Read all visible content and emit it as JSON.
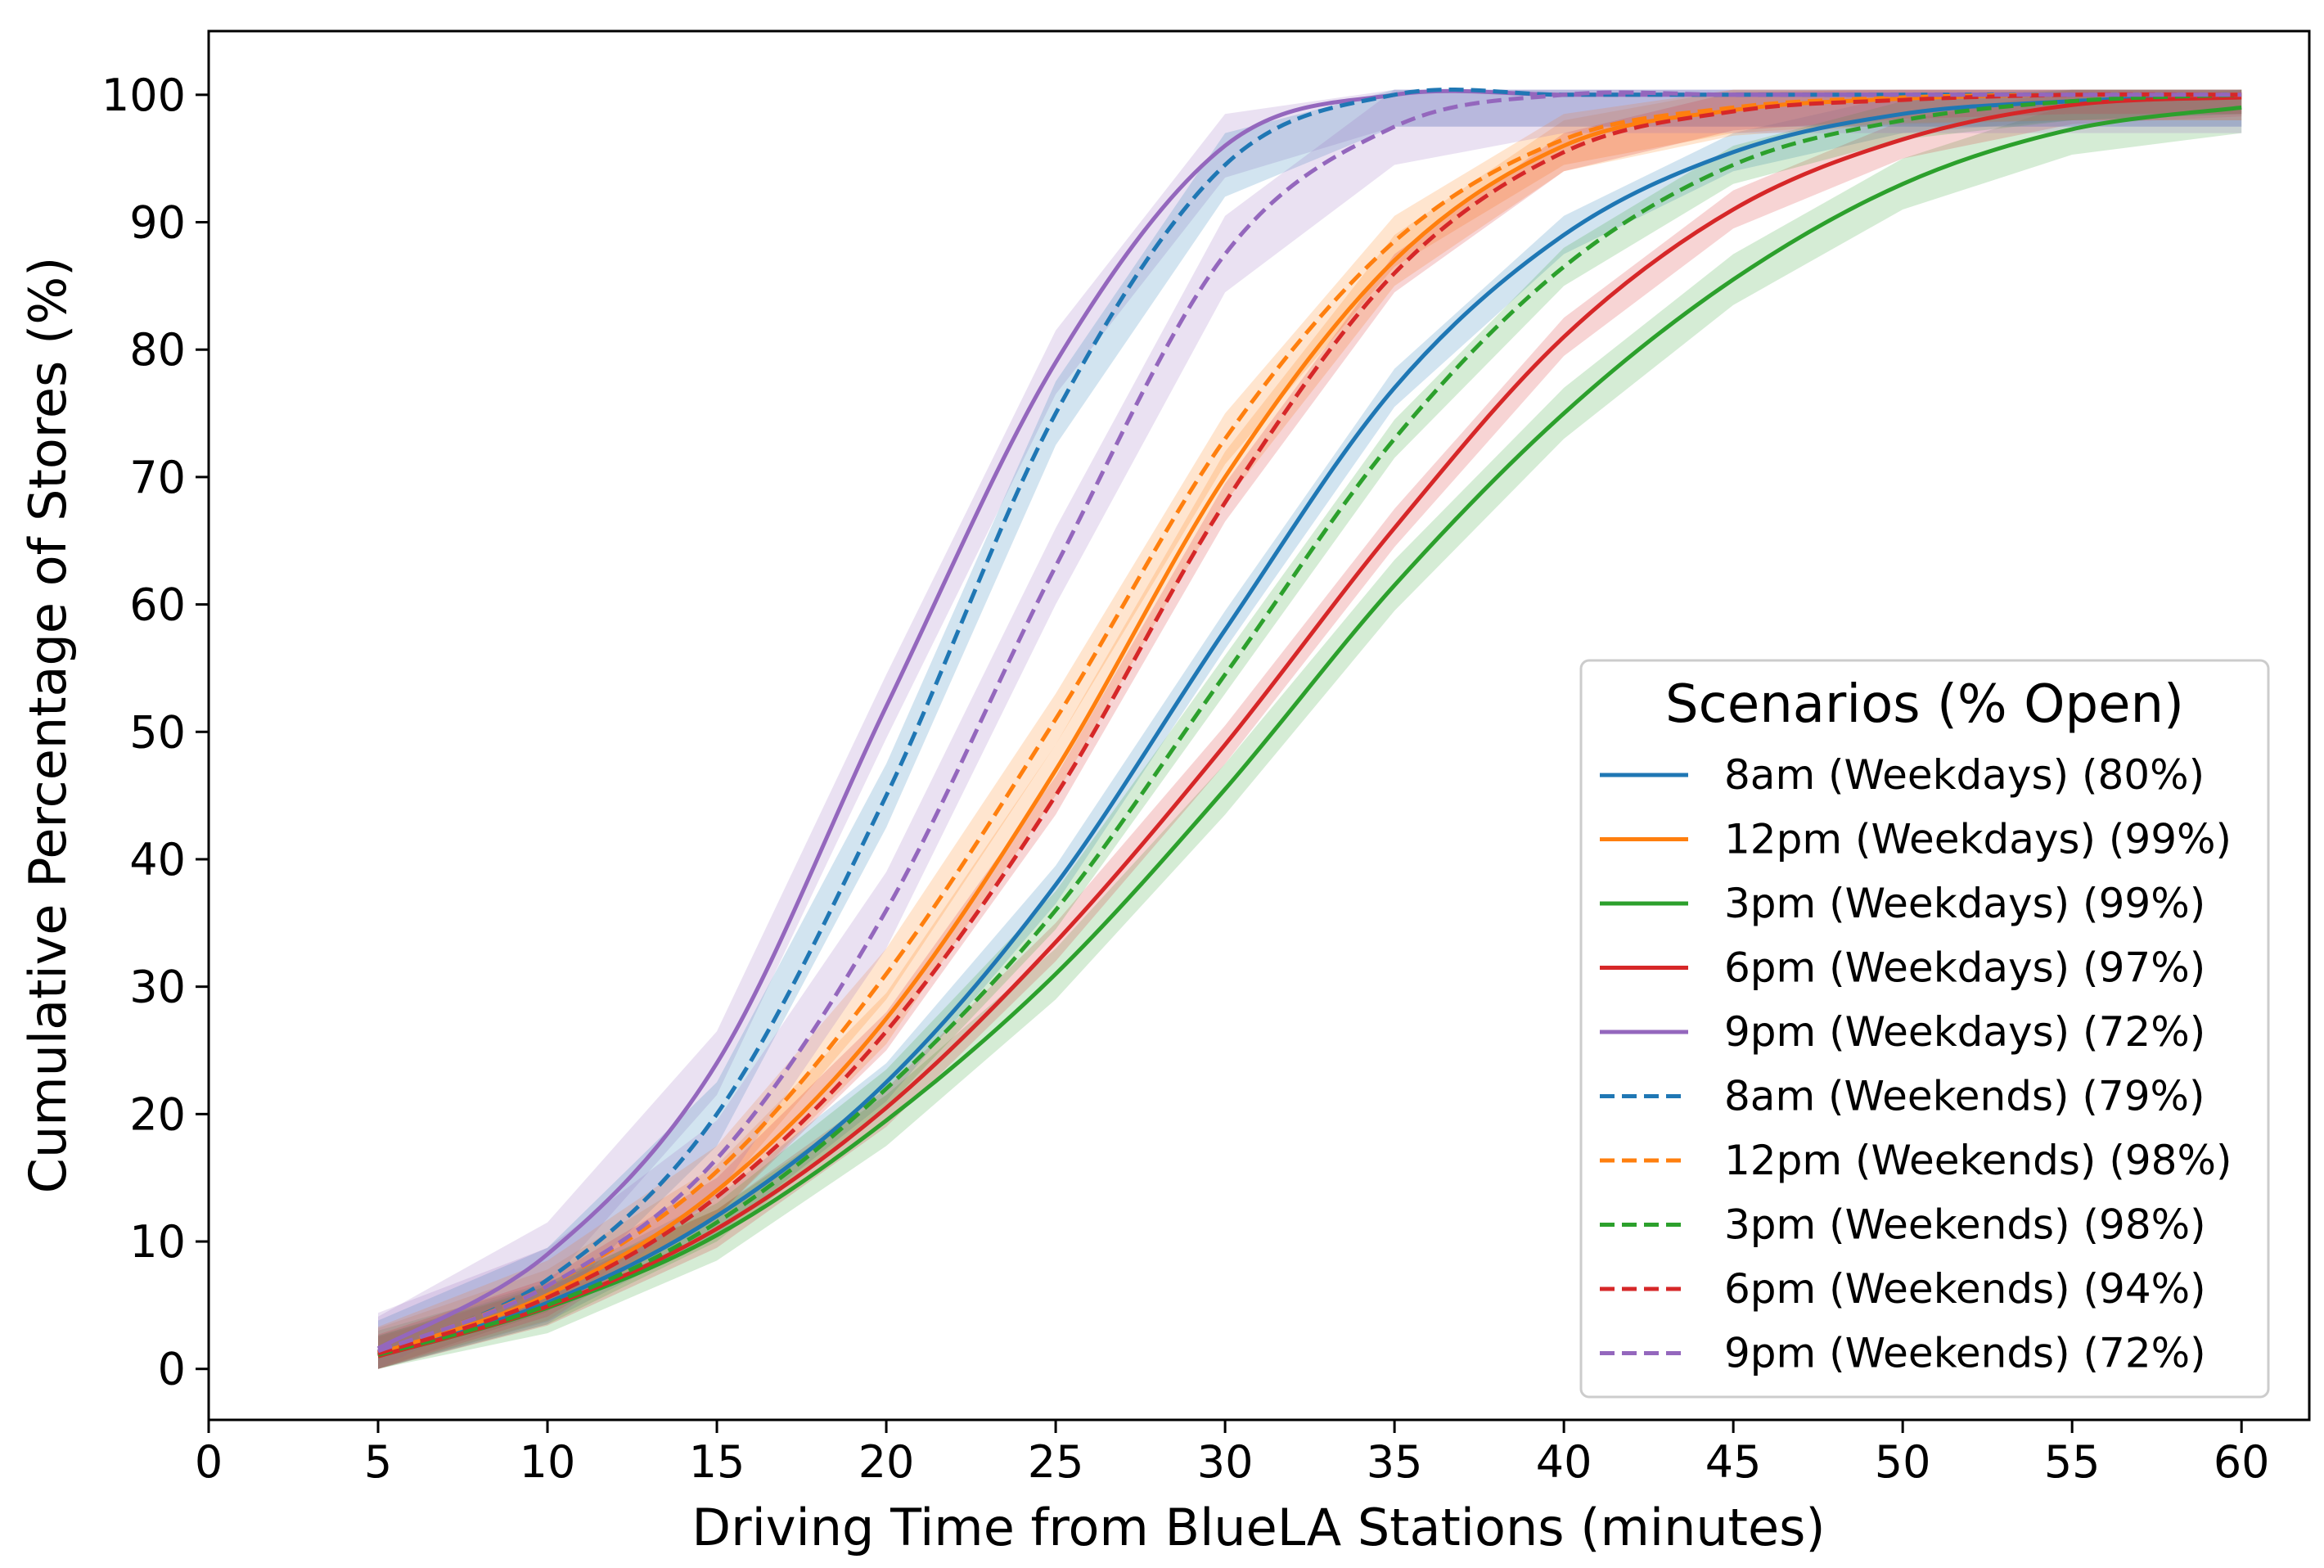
{
  "chart_data": {
    "type": "line",
    "title": "",
    "xlabel": "Driving Time from BlueLA Stations (minutes)",
    "ylabel": "Cumulative Percentage of Stores (%)",
    "xlim": [
      0,
      62
    ],
    "ylim": [
      -4,
      105
    ],
    "xticks": [
      0,
      5,
      10,
      15,
      20,
      25,
      30,
      35,
      40,
      45,
      50,
      55,
      60
    ],
    "yticks": [
      0,
      10,
      20,
      30,
      40,
      50,
      60,
      70,
      80,
      90,
      100
    ],
    "grid": false,
    "legend": {
      "title": "Scenarios (% Open)",
      "position": "lower-right"
    },
    "x": [
      5,
      10,
      15,
      20,
      25,
      30,
      35,
      40,
      45,
      50,
      55,
      60
    ],
    "series": [
      {
        "name": "8am (Weekdays) (80%)",
        "color": "#1f77b4",
        "dash": "solid",
        "band": 1.5,
        "values": [
          1.1,
          5.2,
          12.0,
          22.5,
          38.0,
          58.0,
          77.0,
          89.0,
          95.5,
          98.5,
          99.5,
          100
        ]
      },
      {
        "name": "12pm (Weekdays) (99%)",
        "color": "#ff7f0e",
        "dash": "solid",
        "band": 2.0,
        "values": [
          1.2,
          5.8,
          14.0,
          27.5,
          47.0,
          70.0,
          87.0,
          96.0,
          98.8,
          99.7,
          100,
          100
        ]
      },
      {
        "name": "3pm (Weekdays) (99%)",
        "color": "#2ca02c",
        "dash": "solid",
        "band": 2.0,
        "values": [
          1.0,
          4.8,
          10.5,
          19.5,
          31.0,
          45.5,
          61.5,
          75.0,
          85.5,
          93.0,
          97.3,
          99.0
        ]
      },
      {
        "name": "6pm (Weekdays) (97%)",
        "color": "#d62728",
        "dash": "solid",
        "band": 1.5,
        "values": [
          1.0,
          4.9,
          11.0,
          20.5,
          33.5,
          49.0,
          66.0,
          81.0,
          91.0,
          96.5,
          99.2,
          99.8
        ]
      },
      {
        "name": "9pm (Weekdays) (72%)",
        "color": "#9467bd",
        "dash": "solid",
        "band": 2.5,
        "values": [
          1.6,
          9.0,
          24.0,
          52.0,
          79.0,
          96.0,
          100,
          100,
          100,
          100,
          100,
          100
        ]
      },
      {
        "name": "8am (Weekends) (79%)",
        "color": "#1f77b4",
        "dash": "dashed",
        "band": 2.5,
        "values": [
          1.3,
          7.0,
          20.0,
          45.0,
          75.0,
          94.5,
          100,
          100,
          100,
          100,
          100,
          100
        ]
      },
      {
        "name": "12pm (Weekends) (98%)",
        "color": "#ff7f0e",
        "dash": "dashed",
        "band": 2.0,
        "values": [
          1.3,
          6.5,
          15.5,
          31.0,
          51.0,
          73.0,
          88.5,
          96.5,
          99.0,
          99.8,
          100,
          100
        ]
      },
      {
        "name": "3pm (Weekends) (98%)",
        "color": "#2ca02c",
        "dash": "dashed",
        "band": 1.5,
        "values": [
          1.1,
          5.0,
          11.5,
          22.0,
          36.0,
          54.5,
          73.0,
          86.5,
          94.5,
          98.0,
          99.5,
          100
        ]
      },
      {
        "name": "6pm (Weekends) (94%)",
        "color": "#d62728",
        "dash": "dashed",
        "band": 1.5,
        "values": [
          1.2,
          5.6,
          13.5,
          26.5,
          45.0,
          68.0,
          86.0,
          95.5,
          98.7,
          99.6,
          100,
          100
        ]
      },
      {
        "name": "9pm (Weekends) (72%)",
        "color": "#9467bd",
        "dash": "dashed",
        "band": 3.0,
        "values": [
          1.4,
          6.5,
          16.5,
          36.0,
          63.0,
          87.5,
          97.5,
          100,
          100,
          100,
          100,
          100
        ]
      }
    ]
  }
}
